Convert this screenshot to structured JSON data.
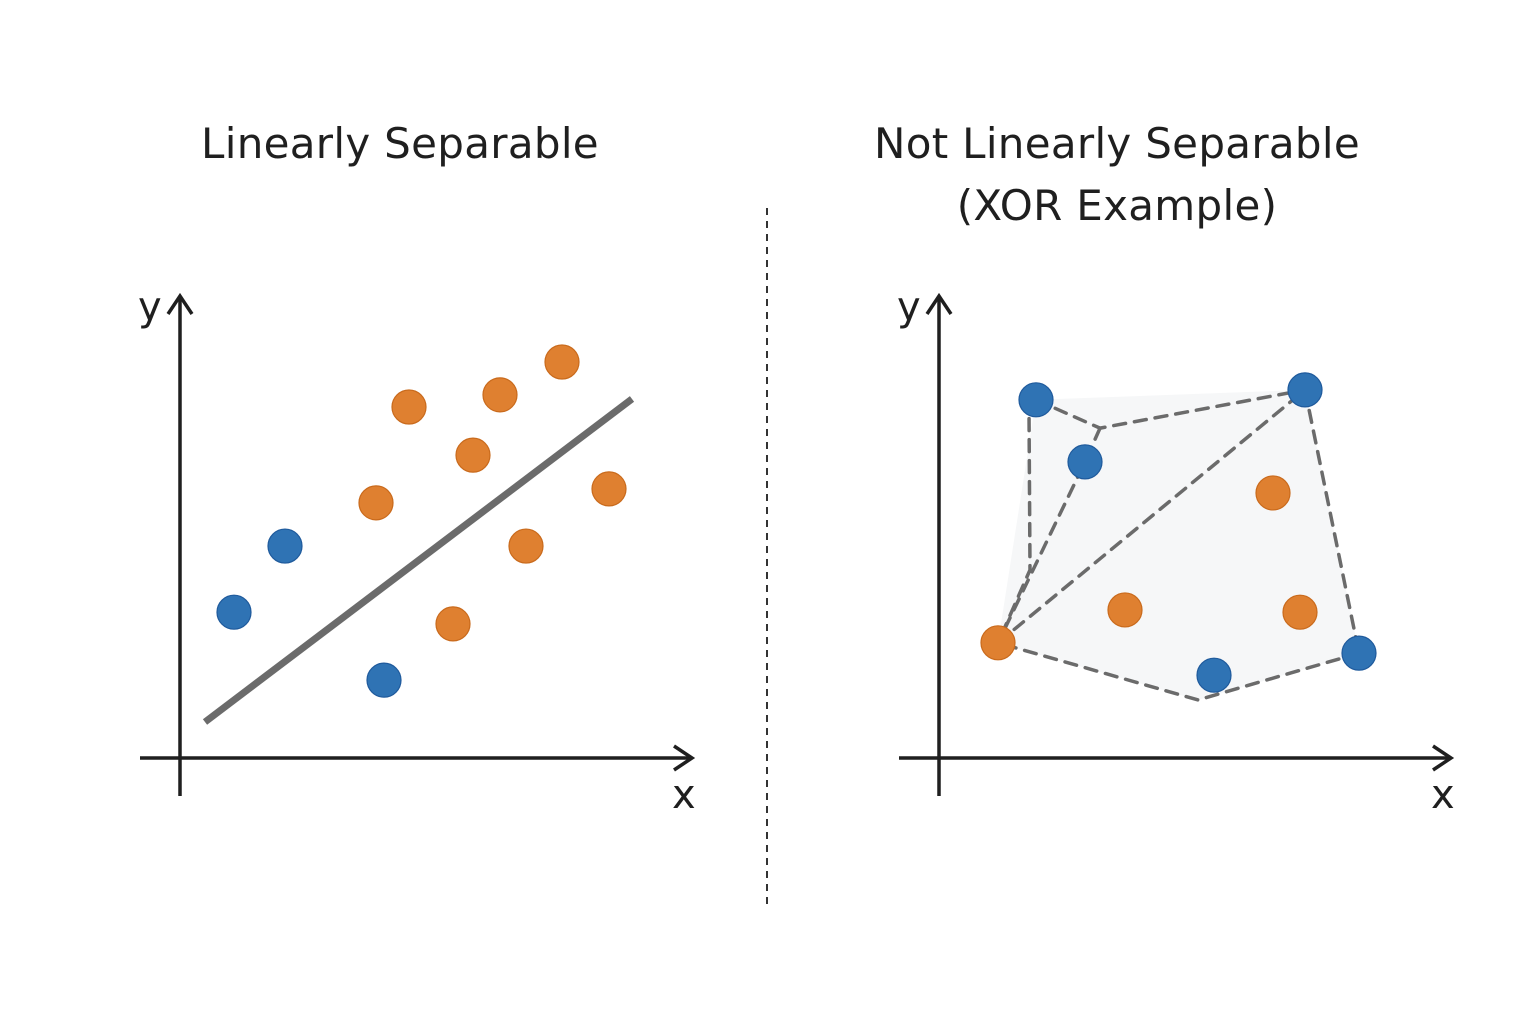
{
  "colors": {
    "class_a": "#2f73b4",
    "class_b": "#df8030",
    "line": "#6b6b6b",
    "axis": "#1f1f1f"
  },
  "chart_data": [
    {
      "type": "scatter",
      "title": "Linearly Separable",
      "xlabel": "x",
      "ylabel": "y",
      "xlim": [
        0,
        10
      ],
      "ylim": [
        0,
        10
      ],
      "grid": false,
      "series": [
        {
          "color": "#2f73b4",
          "points": [
            [
              1.08,
              3.24
            ],
            [
              2.1,
              4.71
            ],
            [
              4.08,
              1.73
            ]
          ]
        },
        {
          "color": "#df8030",
          "points": [
            [
              4.58,
              7.8
            ],
            [
              6.4,
              8.07
            ],
            [
              7.64,
              8.8
            ],
            [
              5.86,
              6.73
            ],
            [
              3.92,
              5.67
            ],
            [
              8.58,
              5.98
            ],
            [
              6.92,
              4.71
            ],
            [
              5.46,
              2.98
            ]
          ]
        }
      ],
      "decision_line": [
        [
          0.5,
          0.8
        ],
        [
          9.04,
          7.98
        ]
      ]
    },
    {
      "type": "scatter",
      "title": "Not Linearly Separable\n(XOR Example)",
      "title_lines": [
        "Not Linearly Separable",
        "(XOR Example)"
      ],
      "xlabel": "x",
      "ylabel": "y",
      "xlim": [
        0,
        10
      ],
      "ylim": [
        0,
        10
      ],
      "grid": false,
      "series": [
        {
          "color": "#2f73b4",
          "points": [
            [
              1.94,
              7.96
            ],
            [
              2.92,
              6.58
            ],
            [
              7.32,
              8.18
            ],
            [
              5.5,
              1.84
            ],
            [
              8.4,
              2.33
            ]
          ]
        },
        {
          "color": "#df8030",
          "points": [
            [
              1.18,
              2.56
            ],
            [
              3.72,
              3.29
            ],
            [
              6.68,
              5.89
            ],
            [
              7.22,
              3.24
            ]
          ]
        }
      ],
      "dashed_paths": [
        [
          [
            1.94,
            7.96
          ],
          [
            1.8,
            7.73
          ],
          [
            1.82,
            4.18
          ],
          [
            1.18,
            2.56
          ]
        ],
        [
          [
            1.94,
            7.96
          ],
          [
            3.22,
            7.33
          ],
          [
            7.32,
            8.18
          ]
        ],
        [
          [
            3.22,
            7.33
          ],
          [
            2.92,
            6.58
          ],
          [
            1.18,
            2.56
          ]
        ],
        [
          [
            1.18,
            2.56
          ],
          [
            7.32,
            8.18
          ]
        ],
        [
          [
            7.32,
            8.18
          ],
          [
            8.4,
            2.33
          ]
        ],
        [
          [
            8.4,
            2.33
          ],
          [
            5.18,
            1.29
          ],
          [
            1.18,
            2.56
          ]
        ]
      ],
      "shaded_region": [
        [
          1.18,
          2.56
        ],
        [
          1.94,
          7.96
        ],
        [
          7.32,
          8.18
        ],
        [
          8.4,
          2.33
        ],
        [
          5.18,
          1.29
        ]
      ]
    }
  ]
}
